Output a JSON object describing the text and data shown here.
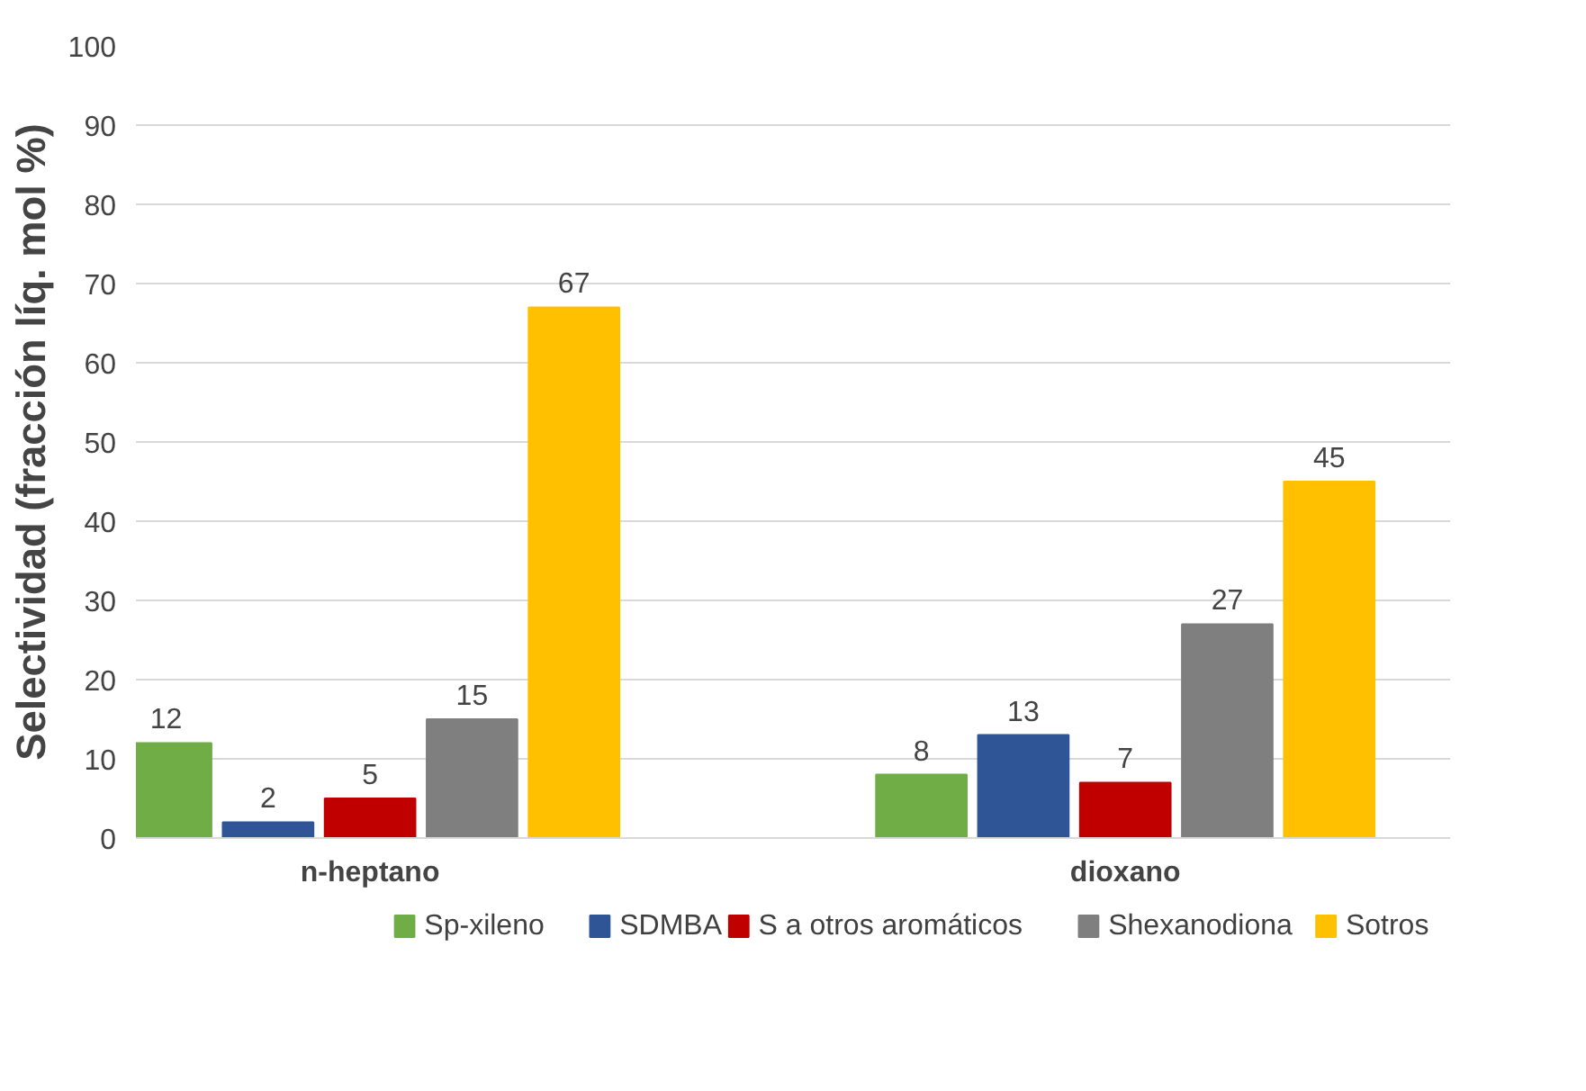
{
  "chart_data": {
    "type": "bar",
    "ylabel": "Selectividad (fracción líq. mol %)",
    "categories": [
      "n-heptano",
      "dioxano"
    ],
    "series": [
      {
        "name": "Sp-xileno",
        "color": "#70ad47",
        "values": [
          12,
          8
        ]
      },
      {
        "name": "SDMBA",
        "color": "#2f5597",
        "values": [
          2,
          13
        ]
      },
      {
        "name": "S a otros aromáticos",
        "color": "#c00000",
        "values": [
          5,
          7
        ]
      },
      {
        "name": "Shexanodiona",
        "color": "#7f7f7f",
        "values": [
          15,
          27
        ]
      },
      {
        "name": "Sotros",
        "color": "#ffc000",
        "values": [
          67,
          45
        ]
      }
    ],
    "ylim": [
      0,
      100
    ],
    "yticks": [
      0,
      10,
      20,
      30,
      40,
      50,
      60,
      70,
      80,
      90,
      100
    ],
    "grid": "y",
    "legend": "bottom",
    "data_labels": true
  }
}
